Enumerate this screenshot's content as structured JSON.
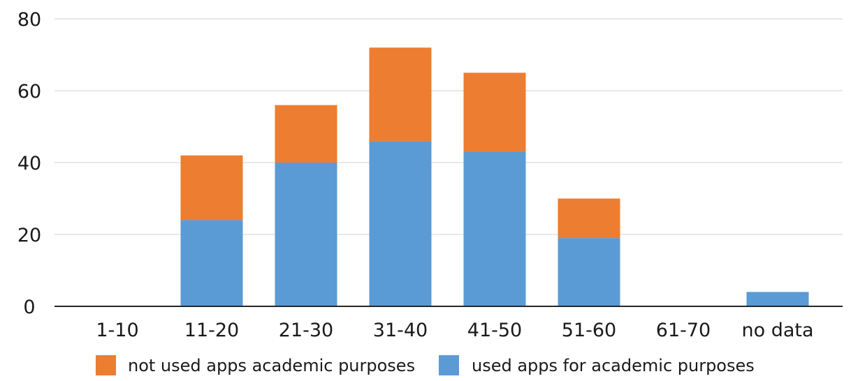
{
  "chart_data": {
    "type": "bar",
    "stacked": true,
    "categories": [
      "1-10",
      "11-20",
      "21-30",
      "31-40",
      "41-50",
      "51-60",
      "61-70",
      "no data"
    ],
    "series": [
      {
        "name": "used apps for academic purposes",
        "color": "#5b9bd5",
        "values": [
          0,
          24,
          40,
          46,
          43,
          19,
          0,
          4
        ]
      },
      {
        "name": "not used apps academic purposes",
        "color": "#ed7d31",
        "values": [
          0,
          18,
          16,
          26,
          22,
          11,
          0,
          0
        ]
      }
    ],
    "yticks": [
      0,
      20,
      40,
      60,
      80
    ],
    "ylim": [
      0,
      80
    ],
    "grid": true,
    "legend": "bottom",
    "legend_order": [
      "not used apps academic purposes",
      "used apps for academic purposes"
    ],
    "title": "",
    "xlabel": "",
    "ylabel": ""
  }
}
